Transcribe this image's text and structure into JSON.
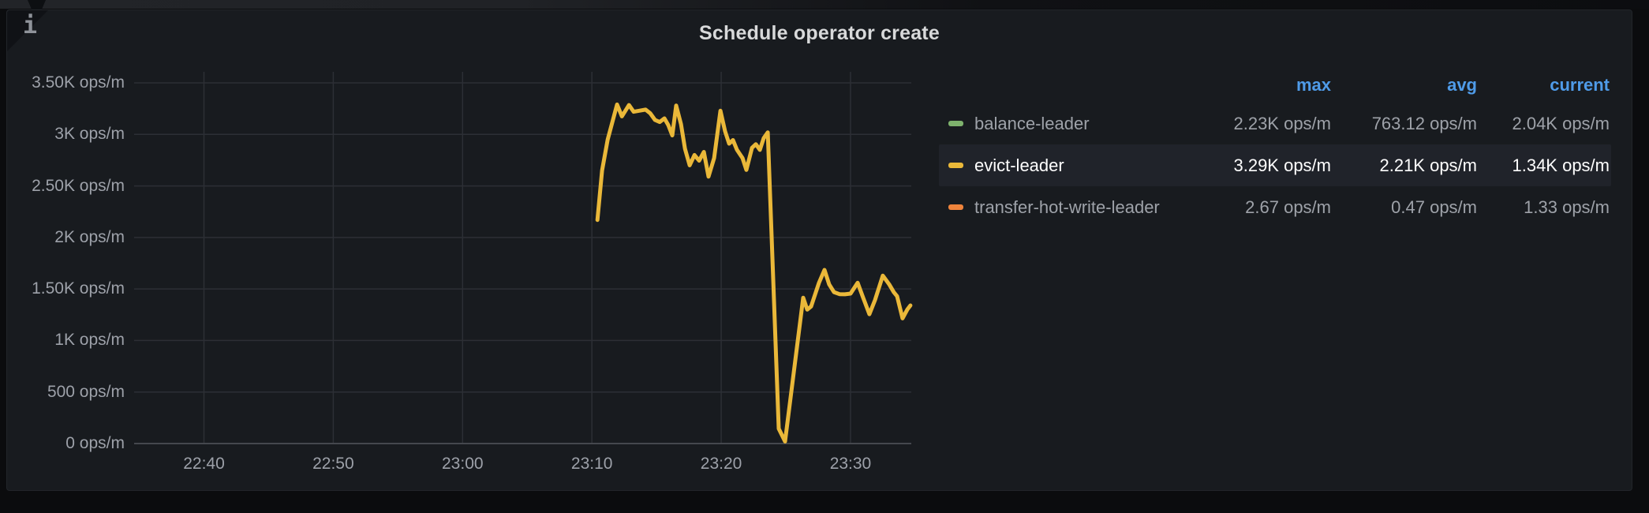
{
  "panel": {
    "title": "Schedule operator create",
    "info_icon_glyph": "i"
  },
  "colors": {
    "page_bg": "#0B0C0E",
    "panel_bg": "#181B1F",
    "grid": "#2C2F35",
    "axis_line": "#45484E",
    "axis_text": "#9DA1A9",
    "title_text": "#D8D9DA",
    "legend_header_blue": "#4F9BE8",
    "legend_text_gray": "#9EA2A9",
    "highlight_row_bg": "#20232A",
    "green": "#7EB26D",
    "yellow": "#EAB839",
    "orange": "#EF843C"
  },
  "chart_data": {
    "type": "line",
    "title": "Schedule operator create",
    "unit": "ops/m",
    "xlabel": "",
    "ylabel": "",
    "grid": true,
    "legend_position": "right-table",
    "x_range_minutes_after_2200": [
      34.6,
      94.7
    ],
    "ylim": [
      0,
      3500
    ],
    "y_ticks": [
      {
        "v": 0,
        "label": "0 ops/m"
      },
      {
        "v": 500,
        "label": "500 ops/m"
      },
      {
        "v": 1000,
        "label": "1K ops/m"
      },
      {
        "v": 1500,
        "label": "1.50K ops/m"
      },
      {
        "v": 2000,
        "label": "2K ops/m"
      },
      {
        "v": 2500,
        "label": "2.50K ops/m"
      },
      {
        "v": 3000,
        "label": "3K ops/m"
      },
      {
        "v": 3500,
        "label": "3.50K ops/m"
      }
    ],
    "x_ticks": [
      {
        "t": 40,
        "label": "22:40"
      },
      {
        "t": 50,
        "label": "22:50"
      },
      {
        "t": 60,
        "label": "23:00"
      },
      {
        "t": 70,
        "label": "23:10"
      },
      {
        "t": 80,
        "label": "23:20"
      },
      {
        "t": 90,
        "label": "23:30"
      }
    ],
    "series": [
      {
        "name": "evict-leader",
        "color": "#EAB839",
        "points": [
          [
            70.43,
            2170
          ],
          [
            70.79,
            2650
          ],
          [
            71.22,
            2950
          ],
          [
            71.95,
            3290
          ],
          [
            72.32,
            3175
          ],
          [
            72.87,
            3285
          ],
          [
            73.23,
            3220
          ],
          [
            73.66,
            3230
          ],
          [
            74.15,
            3240
          ],
          [
            74.51,
            3205
          ],
          [
            74.88,
            3140
          ],
          [
            75.24,
            3120
          ],
          [
            75.61,
            3155
          ],
          [
            75.91,
            3090
          ],
          [
            76.22,
            2990
          ],
          [
            76.52,
            3280
          ],
          [
            76.89,
            3100
          ],
          [
            77.2,
            2860
          ],
          [
            77.56,
            2700
          ],
          [
            77.93,
            2800
          ],
          [
            78.29,
            2745
          ],
          [
            78.66,
            2830
          ],
          [
            79.02,
            2590
          ],
          [
            79.45,
            2770
          ],
          [
            79.94,
            3230
          ],
          [
            80.3,
            3030
          ],
          [
            80.61,
            2910
          ],
          [
            80.91,
            2945
          ],
          [
            81.22,
            2850
          ],
          [
            81.65,
            2770
          ],
          [
            81.95,
            2655
          ],
          [
            82.38,
            2870
          ],
          [
            82.68,
            2905
          ],
          [
            82.99,
            2850
          ],
          [
            83.29,
            2965
          ],
          [
            83.6,
            3020
          ],
          [
            84.45,
            145
          ],
          [
            84.94,
            20
          ],
          [
            86.34,
            1415
          ],
          [
            86.65,
            1300
          ],
          [
            86.95,
            1330
          ],
          [
            87.56,
            1560
          ],
          [
            87.99,
            1685
          ],
          [
            88.35,
            1545
          ],
          [
            88.72,
            1470
          ],
          [
            89.15,
            1450
          ],
          [
            89.57,
            1448
          ],
          [
            90.0,
            1455
          ],
          [
            90.55,
            1560
          ],
          [
            90.98,
            1415
          ],
          [
            91.46,
            1255
          ],
          [
            91.89,
            1390
          ],
          [
            92.5,
            1630
          ],
          [
            92.99,
            1545
          ],
          [
            93.35,
            1468
          ],
          [
            93.6,
            1430
          ],
          [
            94.02,
            1215
          ],
          [
            94.39,
            1300
          ],
          [
            94.63,
            1340
          ]
        ]
      }
    ]
  },
  "legend": {
    "headers": [
      "max",
      "avg",
      "current"
    ],
    "rows": [
      {
        "label": "balance-leader",
        "color": "#7EB26D",
        "max": "2.23K ops/m",
        "avg": "763.12 ops/m",
        "current": "2.04K ops/m",
        "highlighted": false
      },
      {
        "label": "evict-leader",
        "color": "#EAB839",
        "max": "3.29K ops/m",
        "avg": "2.21K ops/m",
        "current": "1.34K ops/m",
        "highlighted": true
      },
      {
        "label": "transfer-hot-write-leader",
        "color": "#EF843C",
        "max": "2.67 ops/m",
        "avg": "0.47 ops/m",
        "current": "1.33 ops/m",
        "highlighted": false
      }
    ]
  }
}
